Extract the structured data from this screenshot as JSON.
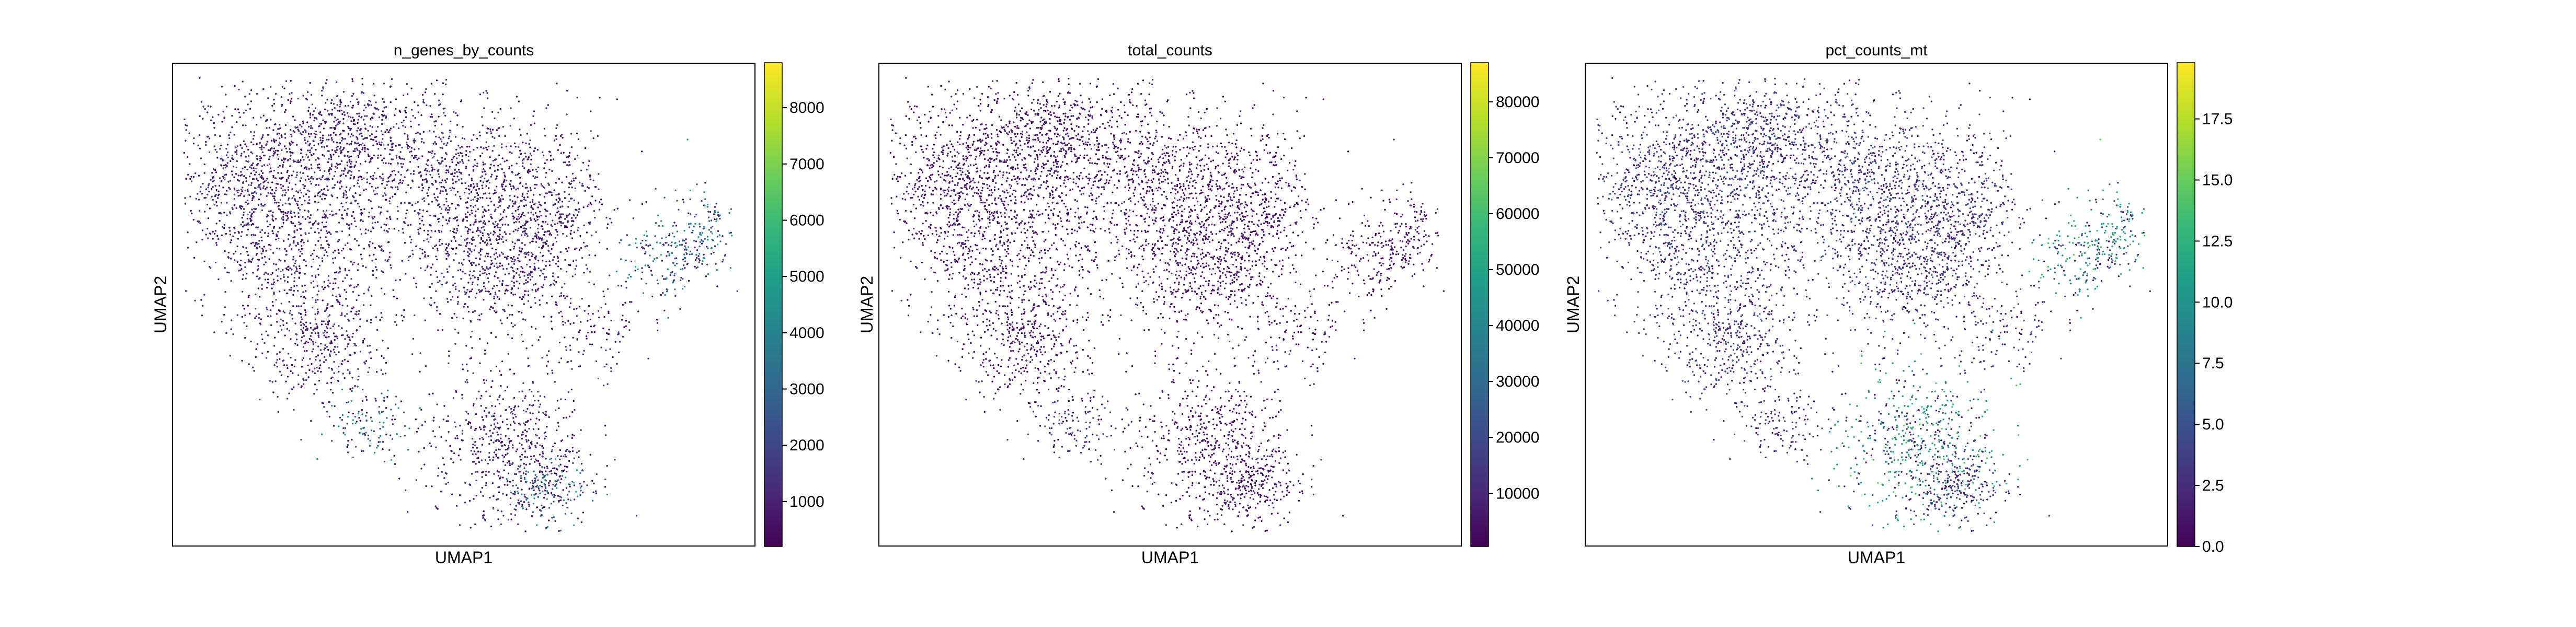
{
  "figure": {
    "colormap": "viridis",
    "point_color_scale": [
      "#440154",
      "#482878",
      "#3e4989",
      "#31688e",
      "#26828e",
      "#1f9e89",
      "#35b779",
      "#6ece58",
      "#b5de2b",
      "#fde725"
    ]
  },
  "chart_data": [
    {
      "type": "scatter",
      "title": "n_genes_by_counts",
      "xlabel": "UMAP1",
      "ylabel": "UMAP2",
      "colorbar": {
        "range": [
          200,
          8800
        ],
        "ticks": [
          1000,
          2000,
          3000,
          4000,
          5000,
          6000,
          7000,
          8000
        ],
        "tick_labels": [
          "1000",
          "2000",
          "3000",
          "4000",
          "5000",
          "6000",
          "7000",
          "8000"
        ]
      },
      "value_profile": {
        "base": [
          400,
          2000
        ],
        "hot": [
          2500,
          5500
        ],
        "hotspots": [
          "right-arm",
          "lower-left-patch",
          "bottom-right-cluster"
        ]
      }
    },
    {
      "type": "scatter",
      "title": "total_counts",
      "xlabel": "UMAP1",
      "ylabel": "UMAP2",
      "colorbar": {
        "range": [
          500,
          87000
        ],
        "ticks": [
          10000,
          20000,
          30000,
          40000,
          50000,
          60000,
          70000,
          80000
        ],
        "tick_labels": [
          "10000",
          "20000",
          "30000",
          "40000",
          "50000",
          "60000",
          "70000",
          "80000"
        ]
      },
      "value_profile": {
        "base": [
          1000,
          12000
        ],
        "hot": [
          12000,
          26000
        ],
        "hotspots": [
          "lower-left-patch"
        ]
      }
    },
    {
      "type": "scatter",
      "title": "pct_counts_mt",
      "xlabel": "UMAP1",
      "ylabel": "UMAP2",
      "colorbar": {
        "range": [
          0,
          19.8
        ],
        "ticks": [
          0,
          2.5,
          5,
          7.5,
          10,
          12.5,
          15,
          17.5
        ],
        "tick_labels": [
          "0.0",
          "2.5",
          "5.0",
          "7.5",
          "10.0",
          "12.5",
          "15.0",
          "17.5"
        ]
      },
      "value_profile": {
        "base": [
          1,
          6
        ],
        "hot": [
          9,
          15
        ],
        "hotspots": [
          "right-arm",
          "bottom-center-cluster"
        ]
      }
    }
  ]
}
